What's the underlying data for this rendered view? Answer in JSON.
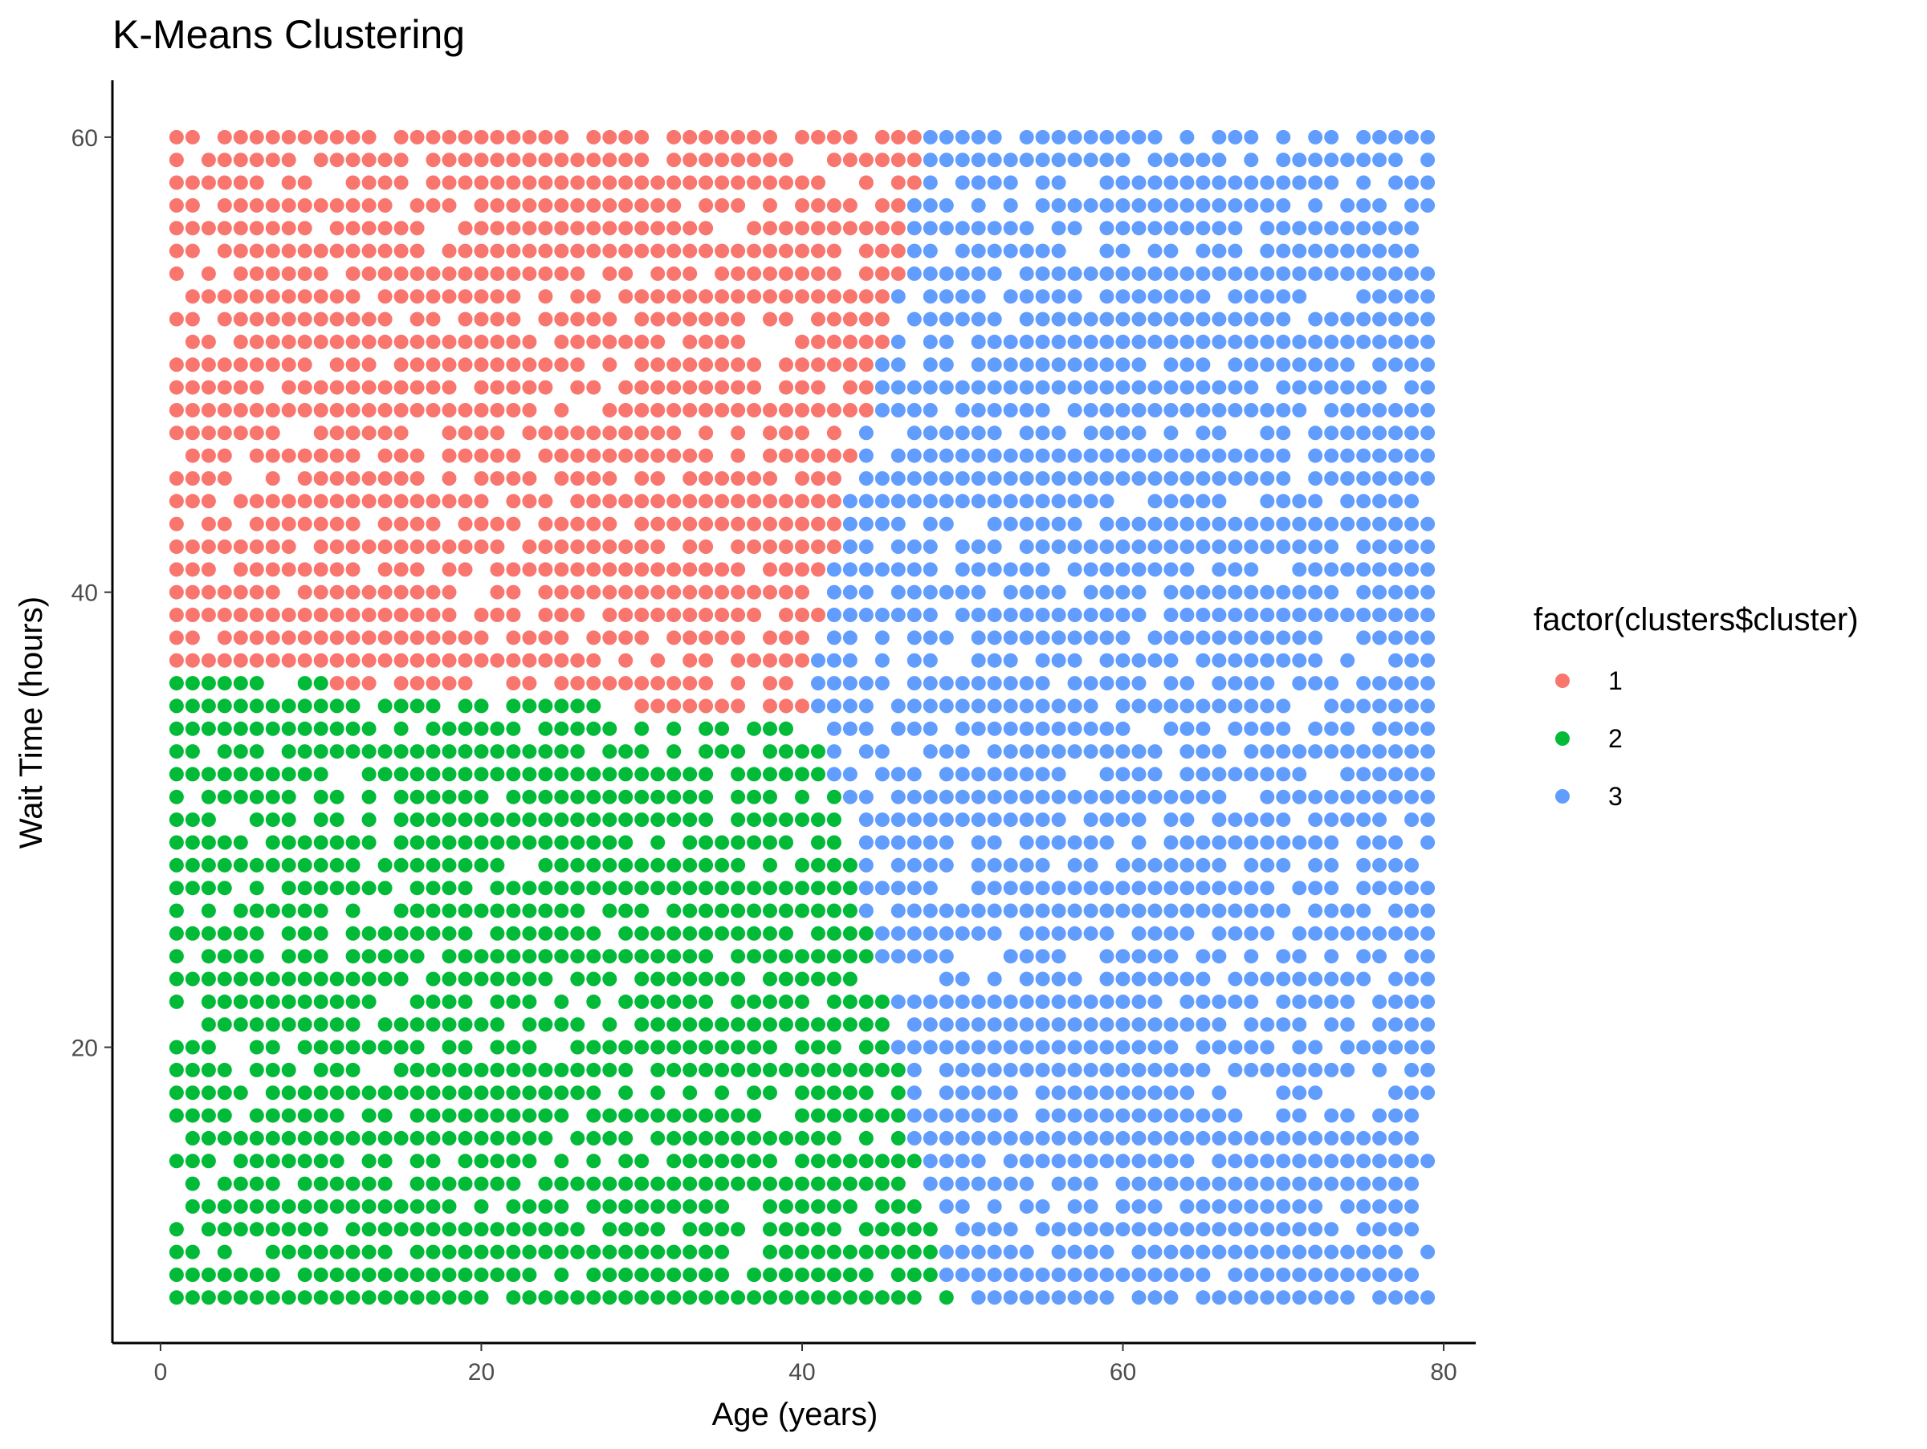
{
  "chart_data": {
    "type": "scatter",
    "title": "K-Means Clustering",
    "xlabel": "Age (years)",
    "ylabel": "Wait Time (hours)",
    "xlim": [
      -3,
      82
    ],
    "ylim": [
      7,
      62.5
    ],
    "x_ticks": [
      0,
      20,
      40,
      60,
      80
    ],
    "y_ticks": [
      20,
      40,
      60
    ],
    "grid": false,
    "x_range": [
      1,
      79
    ],
    "y_range": [
      9,
      60
    ],
    "legend": {
      "title": "factor(clusters$cluster)",
      "position": "right",
      "entries": [
        {
          "label": "1",
          "color": "#F8766D"
        },
        {
          "label": "2",
          "color": "#00BA38"
        },
        {
          "label": "3",
          "color": "#619CFF"
        }
      ]
    },
    "series": [
      {
        "name": "1",
        "color": "#F8766D",
        "region": "x from 1 to ~49, wait time from ~36 to 60; upper-left area above the diagonal boundary"
      },
      {
        "name": "2",
        "color": "#00BA38",
        "region": "x from 1 to ~47, wait time from 9 to ~36; lower-left area"
      },
      {
        "name": "3",
        "color": "#619CFF",
        "region": "x from ~41 to 79, wait time from 9 to 60; right-hand area"
      }
    ]
  }
}
